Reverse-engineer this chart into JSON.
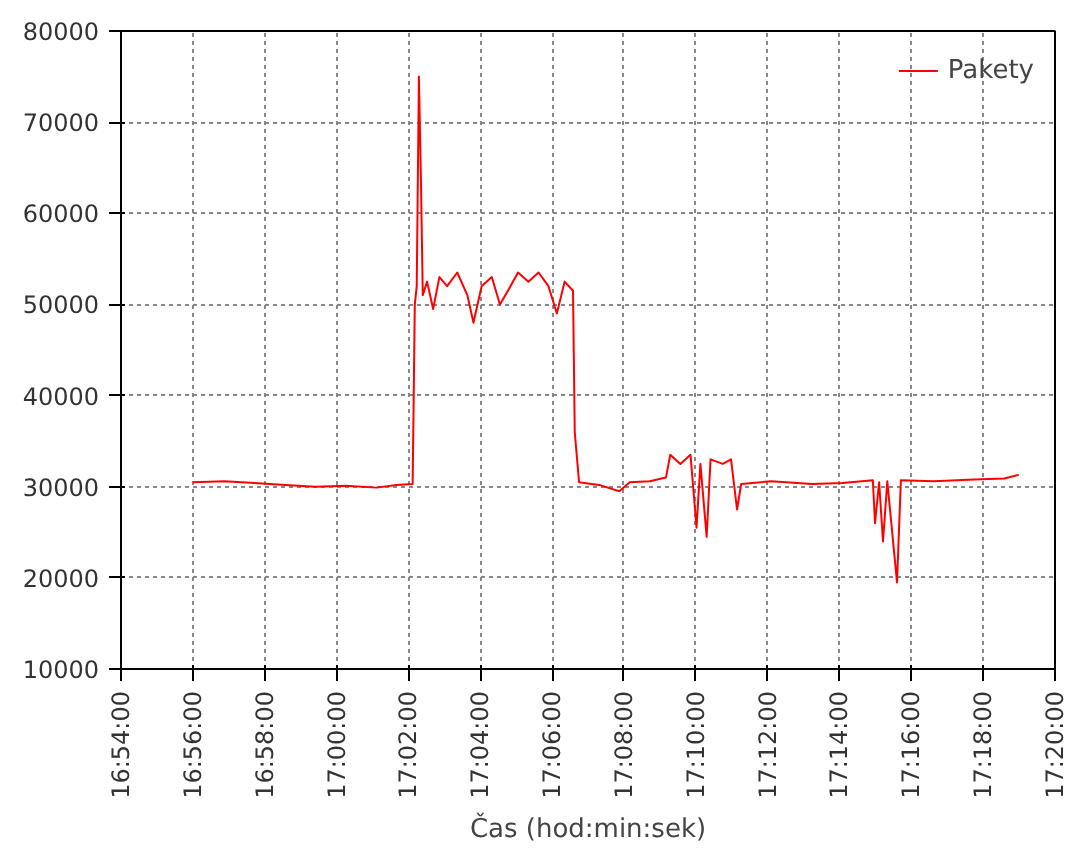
{
  "chart_data": {
    "type": "line",
    "xlabel": "Čas (hod:min:sek)",
    "xlim": [
      16.9,
      17.3333
    ],
    "ylim": [
      10000,
      80000
    ],
    "xticks": [
      {
        "value": 16.9,
        "label": "16:54:00"
      },
      {
        "value": 16.9333,
        "label": "16:56:00"
      },
      {
        "value": 16.9667,
        "label": "16:58:00"
      },
      {
        "value": 17.0,
        "label": "17:00:00"
      },
      {
        "value": 17.0333,
        "label": "17:02:00"
      },
      {
        "value": 17.0667,
        "label": "17:04:00"
      },
      {
        "value": 17.1,
        "label": "17:06:00"
      },
      {
        "value": 17.1333,
        "label": "17:08:00"
      },
      {
        "value": 17.1667,
        "label": "17:10:00"
      },
      {
        "value": 17.2,
        "label": "17:12:00"
      },
      {
        "value": 17.2333,
        "label": "17:14:00"
      },
      {
        "value": 17.2667,
        "label": "17:16:00"
      },
      {
        "value": 17.3,
        "label": "17:18:00"
      },
      {
        "value": 17.3333,
        "label": "17:20:00"
      }
    ],
    "yticks": [
      10000,
      20000,
      30000,
      40000,
      50000,
      60000,
      70000,
      80000
    ],
    "grid": true,
    "legend": "top right",
    "marker": "none",
    "line_style": "solid",
    "series": [
      {
        "name": "Pakety",
        "color": "#ff0000",
        "x": [
          16.9333,
          16.948,
          16.962,
          16.9762,
          16.9902,
          17.0043,
          17.0185,
          17.0278,
          17.0353,
          17.0363,
          17.0372,
          17.0382,
          17.0392,
          17.04,
          17.042,
          17.0448,
          17.0477,
          17.0513,
          17.056,
          17.0607,
          17.0635,
          17.0673,
          17.072,
          17.0758,
          17.0795,
          17.0842,
          17.089,
          17.0937,
          17.0983,
          17.1022,
          17.1058,
          17.1097,
          17.1105,
          17.1125,
          17.1218,
          17.1312,
          17.136,
          17.1453,
          17.1528,
          17.1548,
          17.1595,
          17.1642,
          17.167,
          17.1688,
          17.1717,
          17.1735,
          17.1792,
          17.183,
          17.1858,
          17.1877,
          17.2017,
          17.2205,
          17.2347,
          17.2488,
          17.2498,
          17.2517,
          17.2535,
          17.2555,
          17.26,
          17.2618,
          17.277,
          17.2958,
          17.3098,
          17.3165
        ],
        "values": [
          30500,
          30600,
          30400,
          30200,
          30000,
          30100,
          29900,
          30200,
          30300,
          50000,
          52000,
          75000,
          63000,
          51000,
          52500,
          49500,
          53000,
          52000,
          53500,
          51000,
          48000,
          52000,
          53000,
          50000,
          51500,
          53500,
          52500,
          53500,
          52000,
          49000,
          52500,
          51500,
          36000,
          30500,
          30200,
          29500,
          30500,
          30600,
          31000,
          33500,
          32500,
          33500,
          25500,
          32500,
          24500,
          33000,
          32500,
          33000,
          27500,
          30300,
          30600,
          30300,
          30400,
          30700,
          26000,
          30500,
          24000,
          30600,
          19500,
          30700,
          30600,
          30800,
          30900,
          31300
        ]
      }
    ]
  }
}
